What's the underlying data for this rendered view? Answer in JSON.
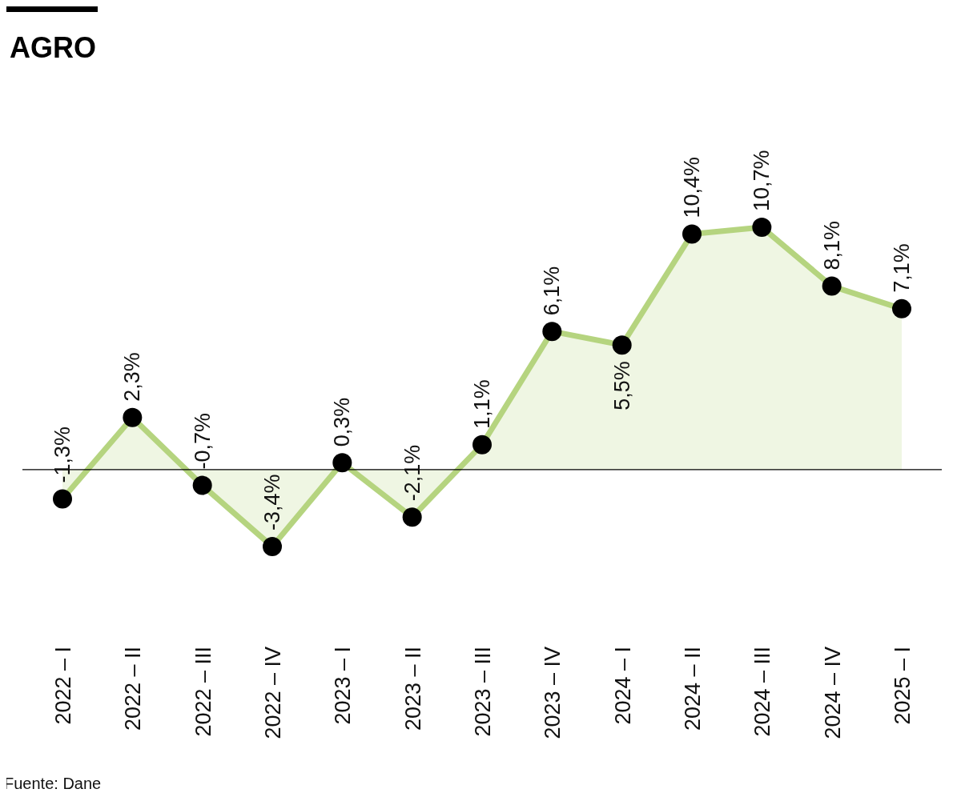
{
  "chart_data": {
    "type": "area",
    "title": "AGRO",
    "categories": [
      "2022 – I",
      "2022 – II",
      "2022 – III",
      "2022 – IV",
      "2023 – I",
      "2023 – II",
      "2023 – III",
      "2023 – IV",
      "2024 – I",
      "2024 – II",
      "2024 – III",
      "2024 – IV",
      "2025 – I"
    ],
    "series": [
      {
        "color": "#b5d47f",
        "values": [
          -1.3,
          2.3,
          -0.7,
          -3.4,
          0.3,
          -2.1,
          1.1,
          6.1,
          5.5,
          10.4,
          10.7,
          8.1,
          7.1
        ],
        "value_labels": [
          "-1,3%",
          "2,3%",
          "-0,7%",
          "-3,4%",
          "0,3%",
          "-2,1%",
          "1,1%",
          "6,1%",
          "5,5%",
          "10,4%",
          "10,7%",
          "8,1%",
          "7,1%"
        ]
      }
    ],
    "marker": "circle",
    "annotations": [
      "Fuente: Dane"
    ]
  }
}
